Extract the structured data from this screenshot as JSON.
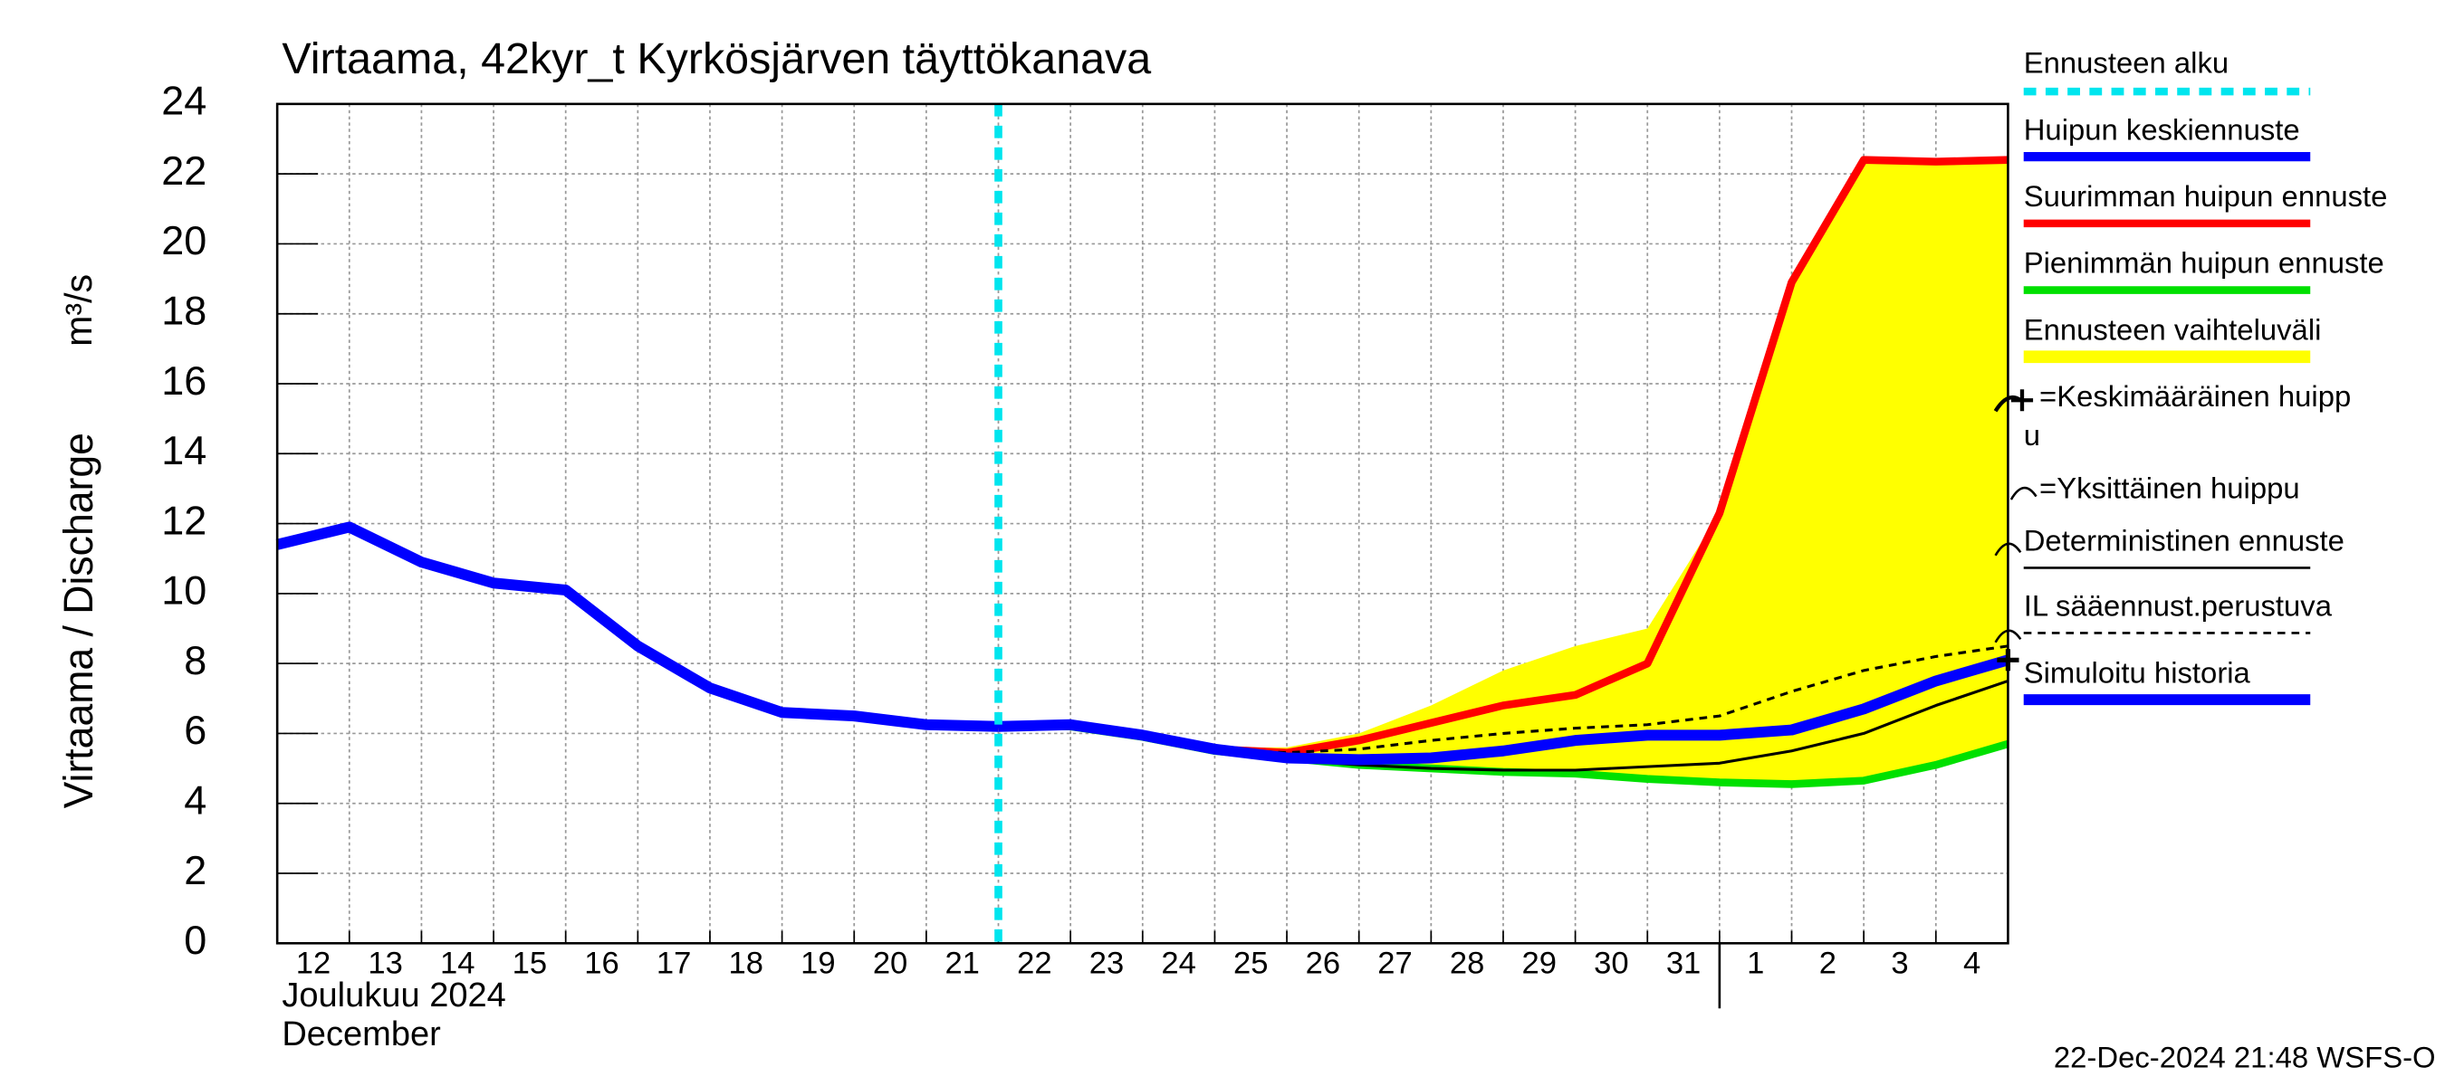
{
  "chart_data": {
    "type": "line",
    "title": "Virtaama, 42kyr_t Kyrkösjärven täyttökanava",
    "y_label": "Virtaama / Discharge",
    "y_unit": "m³/s",
    "month_label": "Joulukuu  2024",
    "month_label_en": "December",
    "timestamp": "22-Dec-2024 21:48 WSFS-O",
    "xlim": [
      0,
      24
    ],
    "xticks": [
      {
        "value": 0,
        "label": "12"
      },
      {
        "value": 1,
        "label": "13"
      },
      {
        "value": 2,
        "label": "14"
      },
      {
        "value": 3,
        "label": "15"
      },
      {
        "value": 4,
        "label": "16"
      },
      {
        "value": 5,
        "label": "17"
      },
      {
        "value": 6,
        "label": "18"
      },
      {
        "value": 7,
        "label": "19"
      },
      {
        "value": 8,
        "label": "20"
      },
      {
        "value": 9,
        "label": "21"
      },
      {
        "value": 10,
        "label": "22"
      },
      {
        "value": 11,
        "label": "23"
      },
      {
        "value": 12,
        "label": "24"
      },
      {
        "value": 13,
        "label": "25"
      },
      {
        "value": 14,
        "label": "26"
      },
      {
        "value": 15,
        "label": "27"
      },
      {
        "value": 16,
        "label": "28"
      },
      {
        "value": 17,
        "label": "29"
      },
      {
        "value": 18,
        "label": "30"
      },
      {
        "value": 19,
        "label": "31"
      },
      {
        "value": 20,
        "label": "1"
      },
      {
        "value": 21,
        "label": "2"
      },
      {
        "value": 22,
        "label": "3"
      },
      {
        "value": 23,
        "label": "4"
      }
    ],
    "ylim": [
      0,
      24
    ],
    "yticks": [
      0,
      2,
      4,
      6,
      8,
      10,
      12,
      14,
      16,
      18,
      20,
      22,
      24
    ],
    "grid": true,
    "forecast_start": {
      "name": "Ennusteen alku",
      "x": 10,
      "color": "#00e5ee"
    },
    "x": [
      0,
      1,
      2,
      3,
      4,
      5,
      6,
      7,
      8,
      9,
      10,
      11,
      12,
      13,
      14,
      15,
      16,
      17,
      18,
      19,
      20,
      21,
      22,
      23,
      24
    ],
    "series": [
      {
        "name": "Huipun keskiennuste",
        "color": "#0000ff",
        "values": [
          null,
          null,
          null,
          null,
          null,
          null,
          null,
          null,
          null,
          null,
          6.2,
          6.25,
          5.95,
          5.55,
          5.3,
          5.25,
          5.3,
          5.5,
          5.8,
          5.95,
          5.95,
          6.1,
          6.7,
          7.5,
          8.1
        ]
      },
      {
        "name": "Suurimman huipun ennuste",
        "color": "#ff0000",
        "values": [
          null,
          null,
          null,
          null,
          null,
          null,
          null,
          null,
          null,
          null,
          6.2,
          6.25,
          5.95,
          5.55,
          5.45,
          5.8,
          6.3,
          6.8,
          7.1,
          8.0,
          12.3,
          18.9,
          22.4,
          22.35,
          22.4
        ]
      },
      {
        "name": "Pienimmän huipun ennuste",
        "color": "#00e000",
        "values": [
          null,
          null,
          null,
          null,
          null,
          null,
          null,
          null,
          null,
          null,
          6.2,
          6.2,
          5.9,
          5.5,
          5.3,
          5.1,
          5.0,
          4.9,
          4.85,
          4.7,
          4.6,
          4.55,
          4.65,
          5.1,
          5.7
        ]
      },
      {
        "name": "Ennusteen vaihteluväli",
        "color": "#ffff00",
        "high": [
          null,
          null,
          null,
          null,
          null,
          null,
          null,
          null,
          null,
          null,
          6.2,
          6.3,
          6.0,
          5.6,
          5.6,
          6.0,
          6.8,
          7.8,
          8.5,
          9.0,
          12.3,
          18.9,
          22.4,
          22.35,
          22.4
        ],
        "low": [
          null,
          null,
          null,
          null,
          null,
          null,
          null,
          null,
          null,
          null,
          6.2,
          6.2,
          5.9,
          5.5,
          5.3,
          5.1,
          5.0,
          4.9,
          4.85,
          4.7,
          4.6,
          4.55,
          4.65,
          5.1,
          5.7
        ]
      },
      {
        "name": "Deterministinen ennuste",
        "color": "#000000",
        "values": [
          null,
          null,
          null,
          null,
          null,
          null,
          null,
          null,
          null,
          null,
          6.2,
          6.25,
          5.95,
          5.5,
          5.25,
          5.1,
          5.0,
          4.95,
          4.95,
          5.05,
          5.15,
          5.5,
          6.0,
          6.8,
          7.5
        ]
      },
      {
        "name": "IL sääennust.perustuva",
        "color": "#000000",
        "dashed": true,
        "values": [
          null,
          null,
          null,
          null,
          null,
          null,
          null,
          null,
          null,
          null,
          6.2,
          6.25,
          5.95,
          5.55,
          5.45,
          5.55,
          5.8,
          6.0,
          6.15,
          6.25,
          6.5,
          7.2,
          7.8,
          8.2,
          8.5
        ]
      },
      {
        "name": "Simuloitu historia",
        "color": "#0000ff",
        "values": [
          11.4,
          11.9,
          10.9,
          10.3,
          10.1,
          8.5,
          7.3,
          6.6,
          6.5,
          6.25,
          6.2,
          null,
          null,
          null,
          null,
          null,
          null,
          null,
          null,
          null,
          null,
          null,
          null,
          null,
          null
        ]
      }
    ],
    "mean_peak": {
      "name": [
        "=Keskimääräinen huipp",
        "u"
      ],
      "x": 24,
      "y": 8.1
    },
    "single_peak": {
      "name": "=Yksittäinen huippu"
    }
  }
}
